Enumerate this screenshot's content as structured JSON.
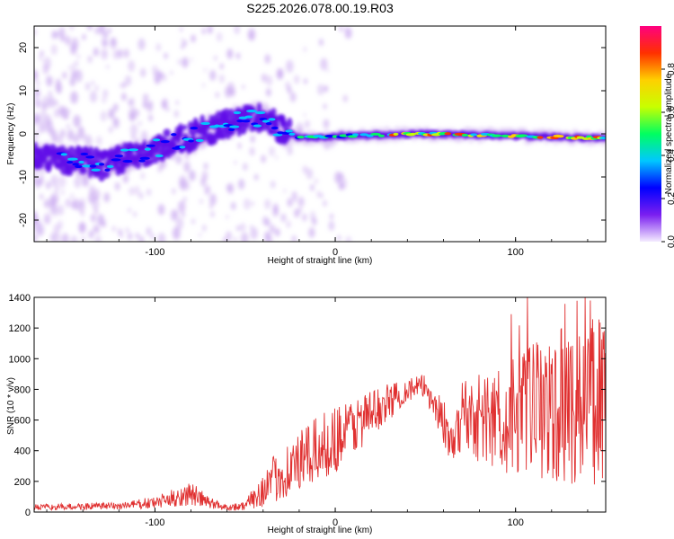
{
  "title": "S225.2026.078.00.19.R03",
  "colors": {
    "snr_line": "#e03030",
    "axis": "#000000",
    "background": "#ffffff",
    "spectrogram_faint": "#c9a8f0",
    "spectrogram_mid": "#6010e8"
  },
  "chart_data": [
    {
      "type": "heatmap",
      "name": "spectrogram",
      "xlabel": "Height of straight line (km)",
      "ylabel": "Frequency (Hz)",
      "xlim": [
        -167,
        150
      ],
      "ylim": [
        -25,
        25
      ],
      "xticks": [
        -100,
        0,
        100
      ],
      "xtick_labels": [
        "-100",
        "0",
        "100"
      ],
      "yticks": [
        -20,
        -10,
        0,
        10,
        20
      ],
      "ytick_labels": [
        "-20",
        "-10",
        "0",
        "10",
        "20"
      ],
      "ridge": {
        "description_points_height_km": [
          -167,
          -150,
          -130,
          -110,
          -90,
          -70,
          -55,
          -40,
          -30,
          -20,
          0,
          50,
          100,
          150
        ],
        "description_points_freq_hz": [
          -5,
          -6,
          -7,
          -5,
          -2,
          1,
          3,
          4,
          1,
          -1,
          -0.5,
          0,
          -0.5,
          -1
        ]
      },
      "colorbar": {
        "label": "Normalized spectral amplitude",
        "range": [
          0,
          1
        ],
        "ticks": [
          0.0,
          0.2,
          0.4,
          0.6,
          0.8
        ],
        "tick_labels": [
          "0.0",
          "0.2",
          "0.4",
          "0.6",
          "0.8"
        ],
        "colormap": [
          "#f4ecff",
          "#7a1ef0",
          "#0000ff",
          "#00c8ff",
          "#00ff60",
          "#c8ff00",
          "#ffd000",
          "#ff3000",
          "#ff0080"
        ]
      }
    },
    {
      "type": "line",
      "name": "snr",
      "xlabel": "Height of straight line (km)",
      "ylabel": "SNR (10 * v/v)",
      "xlim": [
        -167,
        150
      ],
      "ylim": [
        0,
        1400
      ],
      "xticks": [
        -100,
        0,
        100
      ],
      "xtick_labels": [
        "-100",
        "0",
        "100"
      ],
      "yticks": [
        0,
        200,
        400,
        600,
        800,
        1000,
        1200,
        1400
      ],
      "ytick_labels": [
        "0",
        "200",
        "400",
        "600",
        "800",
        "1000",
        "1200",
        "1400"
      ],
      "envelope_height_km": [
        -167,
        -120,
        -100,
        -90,
        -80,
        -70,
        -60,
        -50,
        -40,
        -30,
        -20,
        -10,
        0,
        10,
        20,
        30,
        40,
        50,
        55,
        60,
        65,
        70,
        80,
        90,
        100,
        110,
        120,
        130,
        140,
        150
      ],
      "envelope_snr_mean": [
        30,
        40,
        60,
        90,
        120,
        60,
        30,
        40,
        150,
        250,
        320,
        400,
        480,
        560,
        640,
        720,
        800,
        820,
        700,
        600,
        400,
        650,
        620,
        600,
        620,
        650,
        680,
        700,
        720,
        750
      ],
      "envelope_snr_amp": [
        20,
        25,
        40,
        60,
        80,
        40,
        20,
        30,
        120,
        180,
        200,
        220,
        220,
        200,
        160,
        120,
        80,
        80,
        120,
        150,
        120,
        250,
        300,
        350,
        400,
        450,
        500,
        520,
        550,
        600
      ]
    }
  ]
}
